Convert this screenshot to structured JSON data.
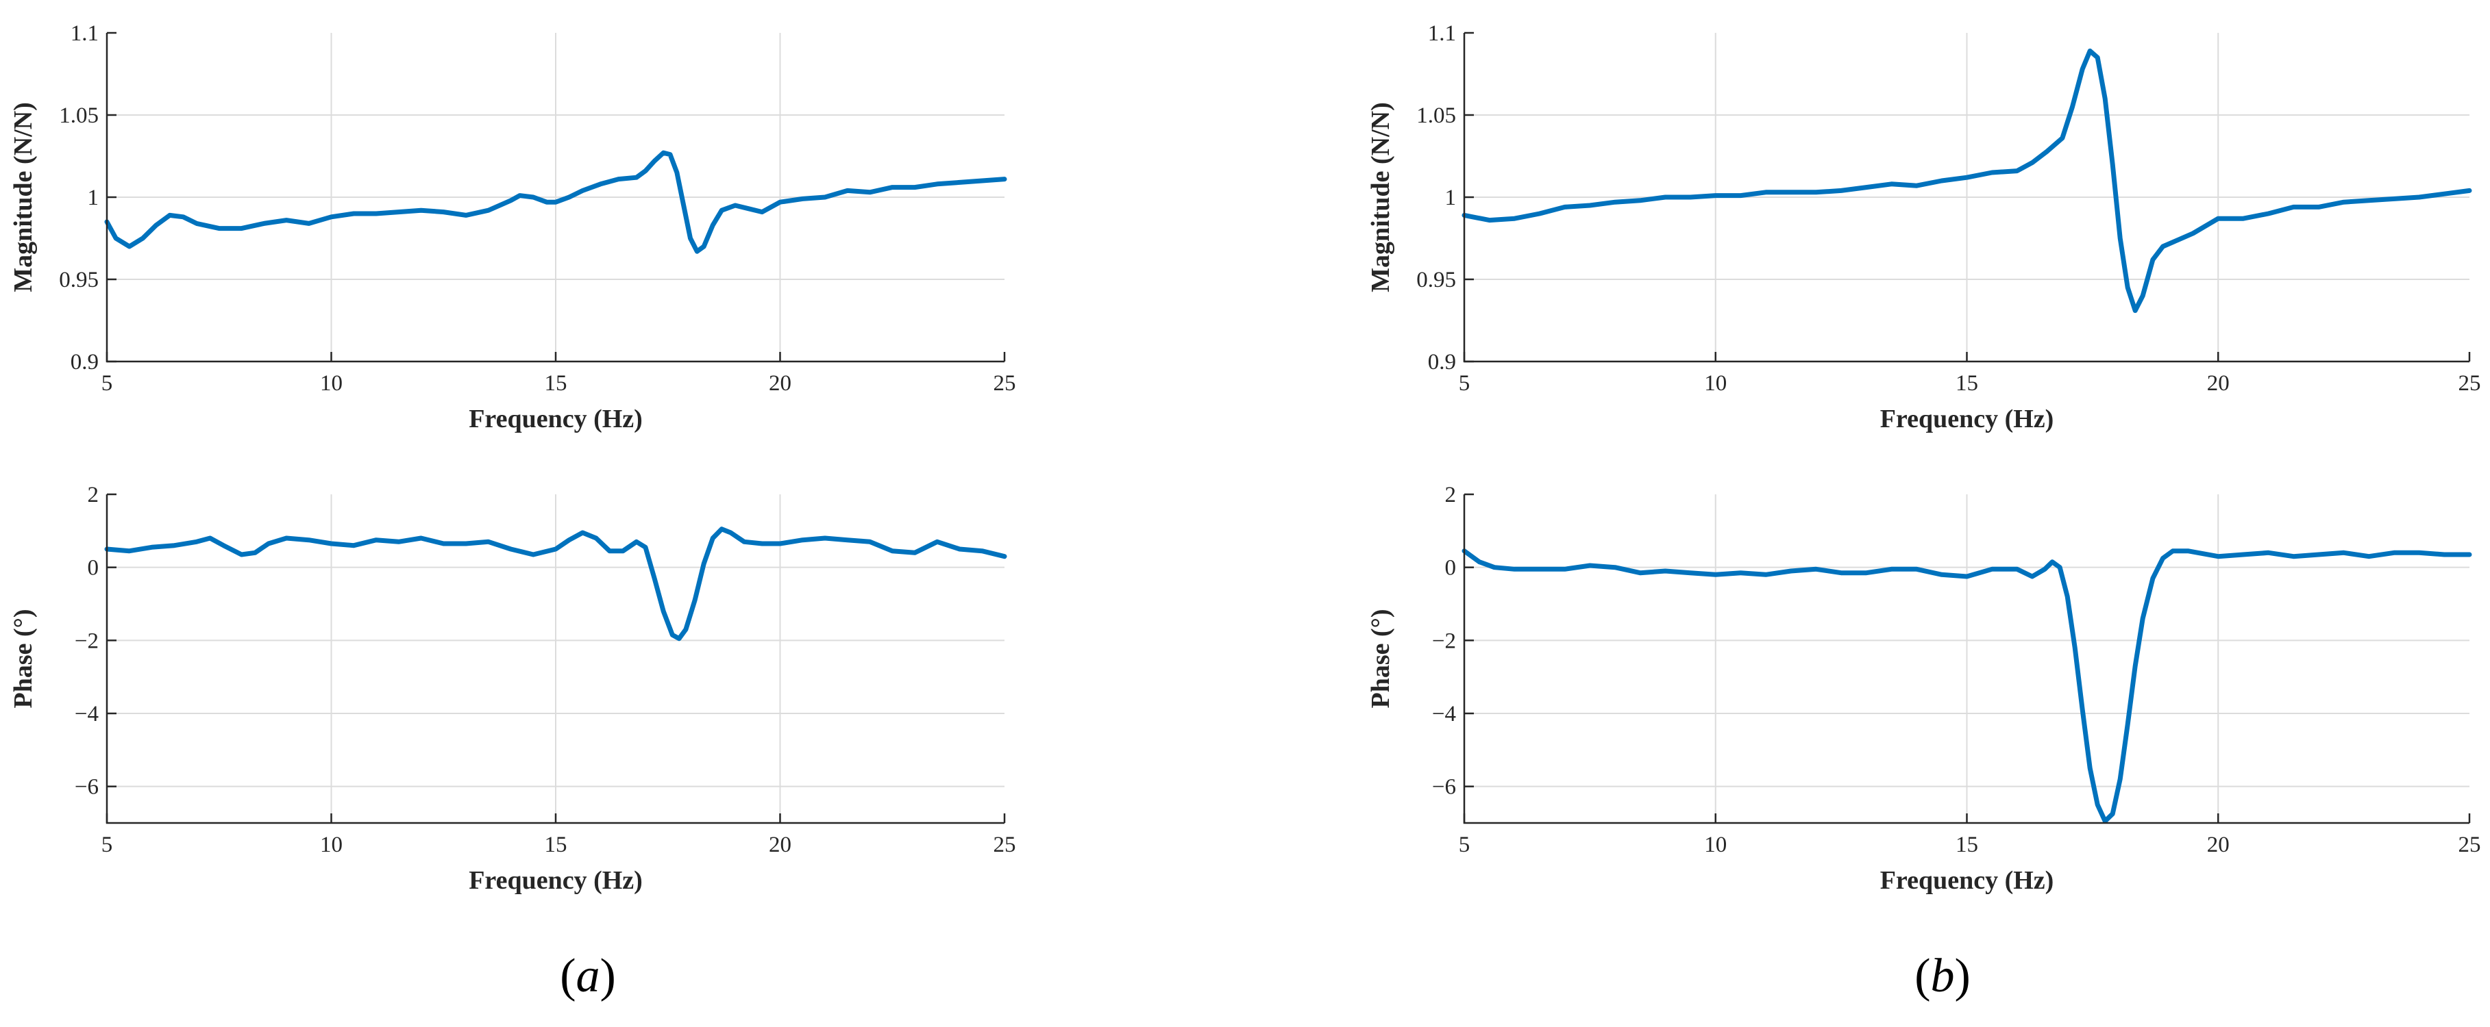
{
  "colors": {
    "series": "#0072bd"
  },
  "figure": {
    "panels": [
      {
        "label_text": "(a)",
        "label_inner": "a",
        "plots": [
          "mag_a",
          "phase_a"
        ]
      },
      {
        "label_text": "(b)",
        "label_inner": "b",
        "plots": [
          "mag_b",
          "phase_b"
        ]
      }
    ]
  },
  "chart_data": [
    {
      "id": "mag_a",
      "type": "line",
      "panel": "a",
      "xlabel": "Frequency (Hz)",
      "ylabel": "Magnitude (N/N)",
      "xlim": [
        5,
        25
      ],
      "ylim": [
        0.9,
        1.1
      ],
      "xticks": [
        5,
        10,
        15,
        20,
        25
      ],
      "yticks": [
        0.9,
        0.95,
        1,
        1.05,
        1.1
      ],
      "ytick_labels": [
        "0.9",
        "0.95",
        "1",
        "1.05",
        "1.1"
      ],
      "grid": true,
      "series": [
        {
          "x": [
            5,
            5.2,
            5.5,
            5.8,
            6.1,
            6.4,
            6.7,
            7.0,
            7.5,
            8.0,
            8.5,
            9.0,
            9.5,
            10.0,
            10.5,
            11.0,
            11.5,
            12.0,
            12.5,
            13.0,
            13.5,
            14.0,
            14.2,
            14.5,
            14.8,
            15.0,
            15.3,
            15.6,
            16.0,
            16.4,
            16.8,
            17.0,
            17.2,
            17.4,
            17.55,
            17.7,
            17.85,
            18.0,
            18.15,
            18.3,
            18.5,
            18.7,
            19.0,
            19.3,
            19.6,
            20.0,
            20.5,
            21.0,
            21.5,
            22.0,
            22.5,
            23.0,
            23.5,
            24.0,
            24.5,
            25.0
          ],
          "y": [
            0.985,
            0.975,
            0.97,
            0.975,
            0.983,
            0.989,
            0.988,
            0.984,
            0.981,
            0.981,
            0.984,
            0.986,
            0.984,
            0.988,
            0.99,
            0.99,
            0.991,
            0.992,
            0.991,
            0.989,
            0.992,
            0.998,
            1.001,
            1.0,
            0.997,
            0.997,
            1.0,
            1.004,
            1.008,
            1.011,
            1.012,
            1.016,
            1.022,
            1.027,
            1.026,
            1.015,
            0.995,
            0.975,
            0.967,
            0.97,
            0.983,
            0.992,
            0.995,
            0.993,
            0.991,
            0.997,
            0.999,
            1.0,
            1.004,
            1.003,
            1.006,
            1.006,
            1.008,
            1.009,
            1.01,
            1.011
          ]
        }
      ]
    },
    {
      "id": "phase_a",
      "type": "line",
      "panel": "a",
      "xlabel": "Frequency (Hz)",
      "ylabel": "Phase (°)",
      "xlim": [
        5,
        25
      ],
      "ylim": [
        -7,
        2
      ],
      "xticks": [
        5,
        10,
        15,
        20,
        25
      ],
      "yticks": [
        -6,
        -4,
        -2,
        0,
        2
      ],
      "ytick_labels": [
        "−6",
        "−4",
        "−2",
        "0",
        "2"
      ],
      "grid": true,
      "series": [
        {
          "x": [
            5,
            5.5,
            6.0,
            6.5,
            7.0,
            7.3,
            7.6,
            8.0,
            8.3,
            8.6,
            9.0,
            9.5,
            10.0,
            10.5,
            11.0,
            11.5,
            12.0,
            12.5,
            13.0,
            13.5,
            14.0,
            14.5,
            15.0,
            15.3,
            15.6,
            15.9,
            16.2,
            16.5,
            16.8,
            17.0,
            17.2,
            17.4,
            17.6,
            17.75,
            17.9,
            18.1,
            18.3,
            18.5,
            18.7,
            18.9,
            19.2,
            19.6,
            20.0,
            20.5,
            21.0,
            21.5,
            22.0,
            22.5,
            23.0,
            23.5,
            24.0,
            24.5,
            25.0
          ],
          "y": [
            0.5,
            0.45,
            0.55,
            0.6,
            0.7,
            0.8,
            0.6,
            0.35,
            0.4,
            0.65,
            0.8,
            0.75,
            0.65,
            0.6,
            0.75,
            0.7,
            0.8,
            0.65,
            0.65,
            0.7,
            0.5,
            0.35,
            0.5,
            0.75,
            0.95,
            0.8,
            0.45,
            0.45,
            0.7,
            0.55,
            -0.3,
            -1.2,
            -1.85,
            -1.95,
            -1.7,
            -0.9,
            0.1,
            0.8,
            1.05,
            0.95,
            0.7,
            0.65,
            0.65,
            0.75,
            0.8,
            0.75,
            0.7,
            0.45,
            0.4,
            0.7,
            0.5,
            0.45,
            0.3
          ]
        }
      ]
    },
    {
      "id": "mag_b",
      "type": "line",
      "panel": "b",
      "xlabel": "Frequency (Hz)",
      "ylabel": "Magnitude (N/N)",
      "xlim": [
        5,
        25
      ],
      "ylim": [
        0.9,
        1.1
      ],
      "xticks": [
        5,
        10,
        15,
        20,
        25
      ],
      "yticks": [
        0.9,
        0.95,
        1,
        1.05,
        1.1
      ],
      "ytick_labels": [
        "0.9",
        "0.95",
        "1",
        "1.05",
        "1.1"
      ],
      "grid": true,
      "series": [
        {
          "x": [
            5,
            5.5,
            6.0,
            6.5,
            7.0,
            7.5,
            8.0,
            8.5,
            9.0,
            9.5,
            10.0,
            10.5,
            11.0,
            11.5,
            12.0,
            12.5,
            13.0,
            13.5,
            14.0,
            14.5,
            15.0,
            15.5,
            16.0,
            16.3,
            16.6,
            16.9,
            17.1,
            17.3,
            17.45,
            17.6,
            17.75,
            17.9,
            18.05,
            18.2,
            18.35,
            18.5,
            18.7,
            18.9,
            19.2,
            19.5,
            20.0,
            20.5,
            21.0,
            21.5,
            22.0,
            22.5,
            23.0,
            23.5,
            24.0,
            24.5,
            25.0
          ],
          "y": [
            0.989,
            0.986,
            0.987,
            0.99,
            0.994,
            0.995,
            0.997,
            0.998,
            1.0,
            1.0,
            1.001,
            1.001,
            1.003,
            1.003,
            1.003,
            1.004,
            1.006,
            1.008,
            1.007,
            1.01,
            1.012,
            1.015,
            1.016,
            1.021,
            1.028,
            1.036,
            1.055,
            1.078,
            1.089,
            1.085,
            1.06,
            1.02,
            0.975,
            0.945,
            0.931,
            0.94,
            0.962,
            0.97,
            0.974,
            0.978,
            0.987,
            0.987,
            0.99,
            0.994,
            0.994,
            0.997,
            0.998,
            0.999,
            1.0,
            1.002,
            1.004
          ]
        }
      ]
    },
    {
      "id": "phase_b",
      "type": "line",
      "panel": "b",
      "xlabel": "Frequency (Hz)",
      "ylabel": "Phase (°)",
      "xlim": [
        5,
        25
      ],
      "ylim": [
        -7,
        2
      ],
      "xticks": [
        5,
        10,
        15,
        20,
        25
      ],
      "yticks": [
        -6,
        -4,
        -2,
        0,
        2
      ],
      "ytick_labels": [
        "−6",
        "−4",
        "−2",
        "0",
        "2"
      ],
      "grid": true,
      "series": [
        {
          "x": [
            5,
            5.3,
            5.6,
            6.0,
            7.0,
            7.5,
            8.0,
            8.5,
            9.0,
            9.5,
            10.0,
            10.5,
            11.0,
            11.5,
            12.0,
            12.5,
            13.0,
            13.5,
            14.0,
            14.5,
            15.0,
            15.5,
            16.0,
            16.3,
            16.55,
            16.7,
            16.85,
            17.0,
            17.15,
            17.3,
            17.45,
            17.6,
            17.75,
            17.9,
            18.05,
            18.2,
            18.35,
            18.5,
            18.7,
            18.9,
            19.1,
            19.4,
            20.0,
            20.5,
            21.0,
            21.5,
            22.0,
            22.5,
            23.0,
            23.5,
            24.0,
            24.5,
            25.0
          ],
          "y": [
            0.45,
            0.15,
            0.0,
            -0.05,
            -0.05,
            0.05,
            0.0,
            -0.15,
            -0.1,
            -0.15,
            -0.2,
            -0.15,
            -0.2,
            -0.1,
            -0.05,
            -0.15,
            -0.15,
            -0.05,
            -0.05,
            -0.2,
            -0.25,
            -0.05,
            -0.05,
            -0.25,
            -0.05,
            0.15,
            0.0,
            -0.8,
            -2.2,
            -3.9,
            -5.5,
            -6.5,
            -6.95,
            -6.75,
            -5.8,
            -4.3,
            -2.7,
            -1.4,
            -0.3,
            0.25,
            0.45,
            0.45,
            0.3,
            0.35,
            0.4,
            0.3,
            0.35,
            0.4,
            0.3,
            0.4,
            0.4,
            0.35,
            0.35
          ]
        }
      ]
    }
  ]
}
